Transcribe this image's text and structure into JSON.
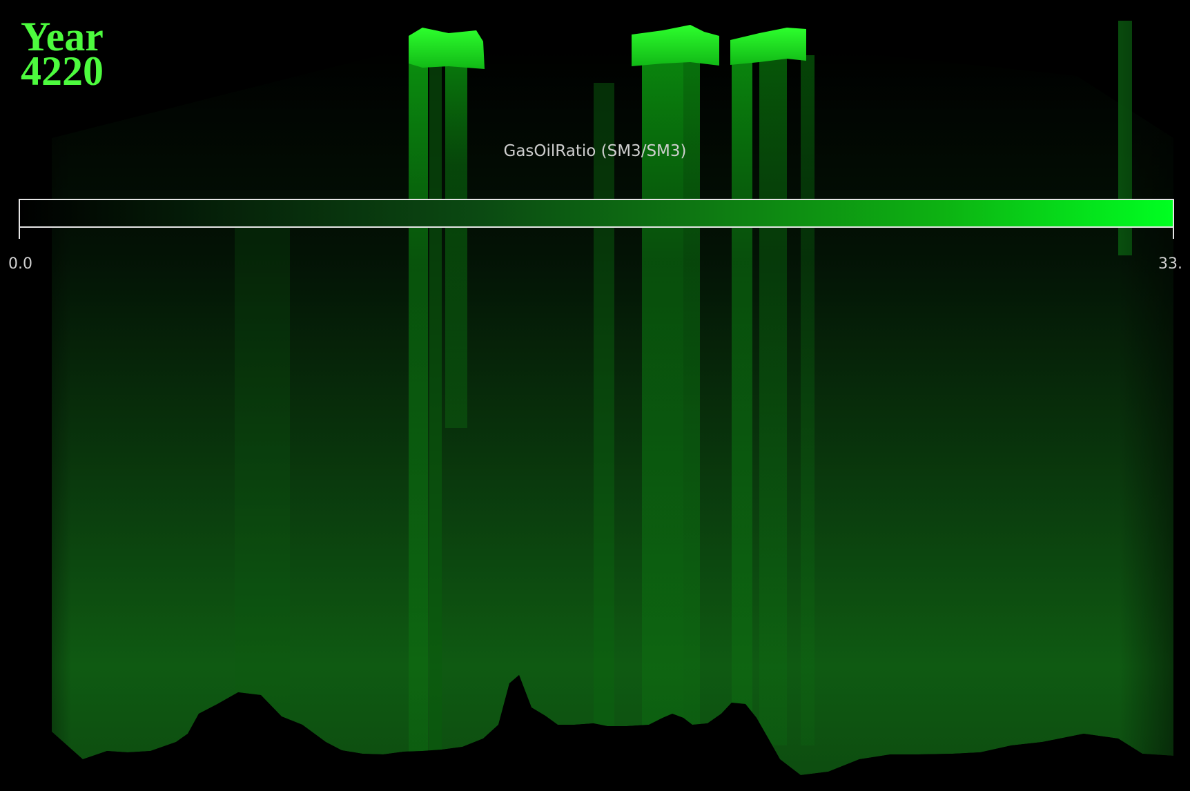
{
  "title": {
    "line1": "Year",
    "line2": "4220"
  },
  "legend": {
    "title": "GasOilRatio (SM3/SM3)",
    "min_label": "0.0",
    "max_label": "33.",
    "min_value": 0.0,
    "colors": [
      "#000000",
      "#06260a",
      "#0b4a12",
      "#0e7a12",
      "#0db212",
      "#00ff21"
    ]
  },
  "scene": {
    "background": "#000000",
    "accent": "#1fe81f"
  }
}
